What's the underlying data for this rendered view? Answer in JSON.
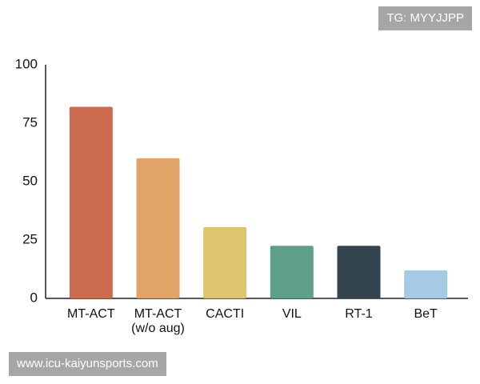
{
  "chart_data": {
    "type": "bar",
    "categories": [
      "MT-ACT",
      "MT-ACT\n(w/o aug)",
      "CACTI",
      "VIL",
      "RT-1",
      "BeT"
    ],
    "series": [
      {
        "values": [
          82,
          60,
          30.5,
          22.5,
          22.5,
          12
        ],
        "colors": [
          "#cd6b50",
          "#e2a466",
          "#dfc46e",
          "#5e9f8a",
          "#34444f",
          "#a5cae4"
        ]
      }
    ],
    "ylim": [
      0,
      100
    ],
    "yticks": [
      0,
      25,
      50,
      75,
      100
    ],
    "grid": false
  },
  "watermarks": [
    "TG: MYYJJPP",
    "www.icu-kaiyunsports.com"
  ]
}
